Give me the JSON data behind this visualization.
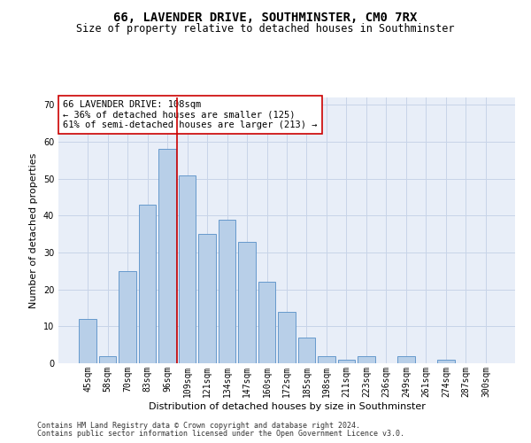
{
  "title": "66, LAVENDER DRIVE, SOUTHMINSTER, CM0 7RX",
  "subtitle": "Size of property relative to detached houses in Southminster",
  "xlabel": "Distribution of detached houses by size in Southminster",
  "ylabel": "Number of detached properties",
  "footnote1": "Contains HM Land Registry data © Crown copyright and database right 2024.",
  "footnote2": "Contains public sector information licensed under the Open Government Licence v3.0.",
  "categories": [
    "45sqm",
    "58sqm",
    "70sqm",
    "83sqm",
    "96sqm",
    "109sqm",
    "121sqm",
    "134sqm",
    "147sqm",
    "160sqm",
    "172sqm",
    "185sqm",
    "198sqm",
    "211sqm",
    "223sqm",
    "236sqm",
    "249sqm",
    "261sqm",
    "274sqm",
    "287sqm",
    "300sqm"
  ],
  "values": [
    12,
    2,
    25,
    43,
    58,
    51,
    35,
    39,
    33,
    22,
    14,
    7,
    2,
    1,
    2,
    0,
    2,
    0,
    1,
    0,
    0
  ],
  "bar_color": "#b8cfe8",
  "bar_edge_color": "#6699cc",
  "grid_color": "#c8d4e8",
  "background_color": "#e8eef8",
  "property_line_color": "#cc0000",
  "annotation_text": "66 LAVENDER DRIVE: 108sqm\n← 36% of detached houses are smaller (125)\n61% of semi-detached houses are larger (213) →",
  "annotation_box_color": "#ffffff",
  "annotation_box_edge": "#cc0000",
  "ylim": [
    0,
    72
  ],
  "yticks": [
    0,
    10,
    20,
    30,
    40,
    50,
    60,
    70
  ],
  "prop_line_idx": 4.5,
  "title_fontsize": 10,
  "subtitle_fontsize": 8.5,
  "xlabel_fontsize": 8,
  "ylabel_fontsize": 8,
  "tick_fontsize": 7,
  "annotation_fontsize": 7.5,
  "footnote_fontsize": 6
}
